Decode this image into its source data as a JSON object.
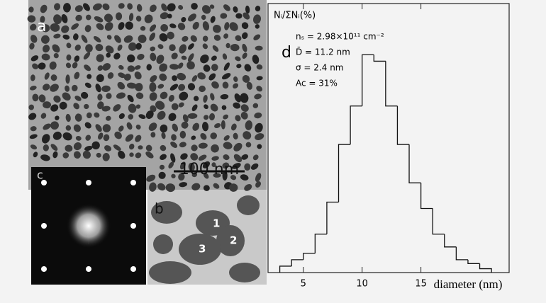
{
  "figure": {
    "panels": {
      "a": "a",
      "b": "b",
      "c": "c"
    },
    "scale_bar": "100 nm",
    "particles": [
      "1",
      "2",
      "3"
    ]
  },
  "chart_data": {
    "type": "histogram",
    "ylabel": "Nᵢ/ΣNᵢ(%)",
    "xlabel": "diameter (nm)",
    "panel_label": "d",
    "annotations": [
      "nₛ = 2.98×10¹¹ cm⁻²",
      "D̄ = 11.2 nm",
      "σ = 2.4 nm",
      "Ac = 31%"
    ],
    "bins": [
      3,
      4,
      5,
      6,
      7,
      8,
      9,
      10,
      11,
      12,
      13,
      14,
      15,
      16,
      17,
      18,
      19,
      20,
      21
    ],
    "values": [
      0.5,
      1,
      1.5,
      3,
      5.5,
      10,
      13,
      17,
      16.5,
      13,
      10,
      7,
      5,
      3,
      2,
      1,
      0.7,
      0.3
    ],
    "color": "#111111",
    "xlim": [
      2,
      22.5
    ],
    "ylim": [
      0,
      21
    ],
    "xticks": [
      5,
      10,
      15
    ]
  }
}
